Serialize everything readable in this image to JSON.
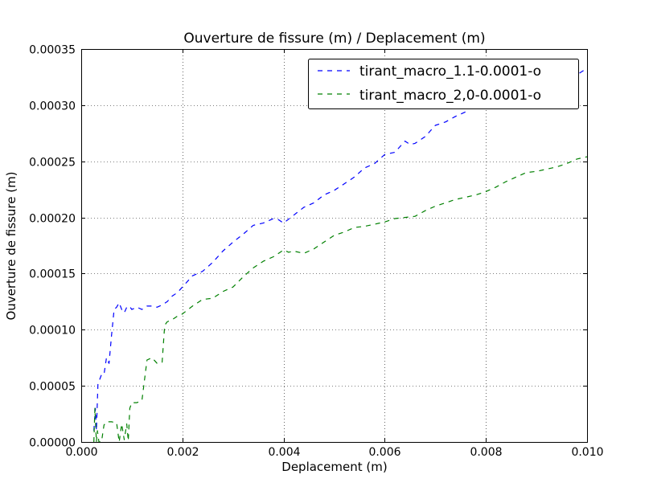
{
  "chart_data": {
    "type": "line",
    "title": "Ouverture de fissure (m) / Deplacement (m)",
    "xlabel": "Deplacement (m)",
    "ylabel": "Ouverture de fissure (m)",
    "xlim": [
      0,
      0.01
    ],
    "ylim": [
      0,
      0.00035
    ],
    "grid": true,
    "legend_position": "upper-right",
    "x_ticks": [
      "0.000",
      "0.002",
      "0.004",
      "0.006",
      "0.008",
      "0.010"
    ],
    "y_ticks": [
      "0.00000",
      "0.00005",
      "0.00010",
      "0.00015",
      "0.00020",
      "0.00025",
      "0.00030",
      "0.00035"
    ],
    "series": [
      {
        "name": "tirant_macro_1.1-0.0001-o",
        "color": "#0000ff",
        "style": "dashed",
        "x": [
          0.00025,
          0.00028,
          0.0003,
          0.00033,
          0.00036,
          0.0004,
          0.00045,
          0.0005,
          0.00055,
          0.0006,
          0.00065,
          0.0007,
          0.00075,
          0.0008,
          0.00085,
          0.0009,
          0.00095,
          0.001,
          0.0011,
          0.0012,
          0.0013,
          0.0014,
          0.0015,
          0.0016,
          0.0017,
          0.0018,
          0.0019,
          0.002,
          0.0022,
          0.0024,
          0.0026,
          0.0028,
          0.003,
          0.0032,
          0.0034,
          0.0036,
          0.0038,
          0.0039,
          0.004,
          0.0042,
          0.0044,
          0.0046,
          0.0048,
          0.005,
          0.0052,
          0.0054,
          0.0056,
          0.0058,
          0.006,
          0.0062,
          0.0064,
          0.0065,
          0.0066,
          0.0068,
          0.007,
          0.0072,
          0.0074,
          0.0076,
          0.0078,
          0.008,
          0.0082,
          0.0084,
          0.0086,
          0.0087,
          0.0088,
          0.009,
          0.0092,
          0.0094,
          0.0096,
          0.0098,
          0.01
        ],
        "y": [
          1e-05,
          3e-05,
          1e-05,
          5.2e-05,
          5.5e-05,
          6e-05,
          6e-05,
          7.5e-05,
          7e-05,
          9.5e-05,
          0.000118,
          0.00012,
          0.000124,
          0.000118,
          0.000115,
          0.00012,
          0.000121,
          0.000118,
          0.00012,
          0.000118,
          0.000121,
          0.000121,
          0.00012,
          0.000122,
          0.000125,
          0.00013,
          0.000133,
          0.000138,
          0.000148,
          0.000152,
          0.00016,
          0.00017,
          0.000178,
          0.000185,
          0.000193,
          0.000195,
          0.000199,
          0.000198,
          0.000195,
          0.000202,
          0.000209,
          0.000213,
          0.00022,
          0.000224,
          0.00023,
          0.000236,
          0.000244,
          0.000248,
          0.000256,
          0.000258,
          0.000268,
          0.000265,
          0.000266,
          0.000272,
          0.000282,
          0.000285,
          0.00029,
          0.000294,
          0.000303,
          0.000308,
          0.000314,
          0.00032,
          0.000325,
          0.00032,
          0.000318,
          0.000318,
          0.00032,
          0.000322,
          0.000326,
          0.000327,
          0.000333
        ]
      },
      {
        "name": "tirant_macro_2,0-0.0001-o",
        "color": "#008000",
        "style": "dashed",
        "x": [
          0.00025,
          0.00027,
          0.0003,
          0.00032,
          0.00035,
          0.0004,
          0.00045,
          0.0005,
          0.0006,
          0.0007,
          0.00075,
          0.0008,
          0.00085,
          0.0009,
          0.00093,
          0.00096,
          0.001,
          0.0011,
          0.0012,
          0.0013,
          0.0014,
          0.0015,
          0.0016,
          0.00165,
          0.0017,
          0.0018,
          0.0019,
          0.002,
          0.0022,
          0.0024,
          0.0026,
          0.0028,
          0.003,
          0.0032,
          0.0034,
          0.0036,
          0.0038,
          0.004,
          0.0041,
          0.0042,
          0.0044,
          0.0046,
          0.0048,
          0.005,
          0.0052,
          0.0054,
          0.0056,
          0.0058,
          0.006,
          0.0062,
          0.0064,
          0.0066,
          0.0068,
          0.007,
          0.0072,
          0.0074,
          0.0076,
          0.0078,
          0.008,
          0.0082,
          0.0084,
          0.0086,
          0.0088,
          0.009,
          0.0092,
          0.0094,
          0.0096,
          0.0098,
          0.01
        ],
        "y": [
          0.0,
          3e-05,
          0.0,
          1e-05,
          0.0,
          0.0,
          1.5e-05,
          1.8e-05,
          1.8e-05,
          1.7e-05,
          0.0,
          1.6e-05,
          2e-06,
          1.6e-05,
          1e-06,
          3e-05,
          3.5e-05,
          3.5e-05,
          3.7e-05,
          7.3e-05,
          7.5e-05,
          7e-05,
          7.1e-05,
          0.000104,
          0.000107,
          0.000109,
          0.000112,
          0.000114,
          0.000121,
          0.000127,
          0.000128,
          0.000134,
          0.000138,
          0.000147,
          0.000155,
          0.000161,
          0.000165,
          0.000171,
          0.000169,
          0.00017,
          0.000168,
          0.000172,
          0.000178,
          0.000184,
          0.000187,
          0.000191,
          0.000192,
          0.000194,
          0.000196,
          0.000199,
          0.0002,
          0.000201,
          0.000206,
          0.00021,
          0.000213,
          0.000216,
          0.000218,
          0.00022,
          0.000223,
          0.000227,
          0.000232,
          0.000236,
          0.00024,
          0.000241,
          0.000243,
          0.000245,
          0.000248,
          0.000252,
          0.000254
        ]
      }
    ]
  }
}
